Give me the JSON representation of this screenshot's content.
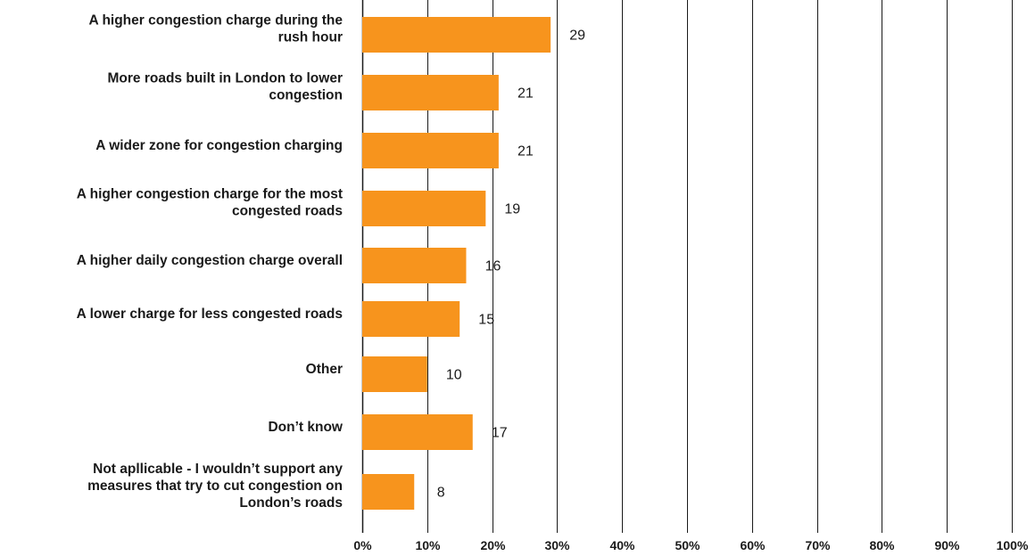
{
  "chart_data": {
    "type": "bar",
    "orientation": "horizontal",
    "categories": [
      "A higher congestion charge during the rush hour",
      "More roads built in London to lower congestion",
      "A wider zone for congestion charging",
      "A higher congestion charge for the most congested roads",
      "A higher daily congestion charge overall",
      "A lower charge for less congested roads",
      "Other",
      "Don’t know",
      "Not apllicable - I wouldn’t support any measures that try to cut congestion on London’s roads"
    ],
    "category_lines": [
      [
        "A higher congestion charge during the",
        "rush hour"
      ],
      [
        "More roads built in London to lower",
        "congestion"
      ],
      [
        "A wider zone for congestion charging"
      ],
      [
        "A higher congestion charge for the most",
        "congested roads"
      ],
      [
        "A higher daily congestion charge overall"
      ],
      [
        "A lower charge for less congested roads"
      ],
      [
        "Other"
      ],
      [
        "Don’t know"
      ],
      [
        "Not apllicable - I wouldn’t support any",
        "measures that try to cut congestion on",
        "London’s roads"
      ]
    ],
    "values": [
      29,
      21,
      21,
      19,
      16,
      15,
      10,
      17,
      8
    ],
    "xlim": [
      0,
      100
    ],
    "x_ticks": [
      "0%",
      "10%",
      "20%",
      "30%",
      "40%",
      "50%",
      "60%",
      "70%",
      "80%",
      "90%",
      "100%"
    ],
    "grid": true,
    "bar_color": "#F7941D",
    "title": "",
    "xlabel": "",
    "ylabel": ""
  }
}
